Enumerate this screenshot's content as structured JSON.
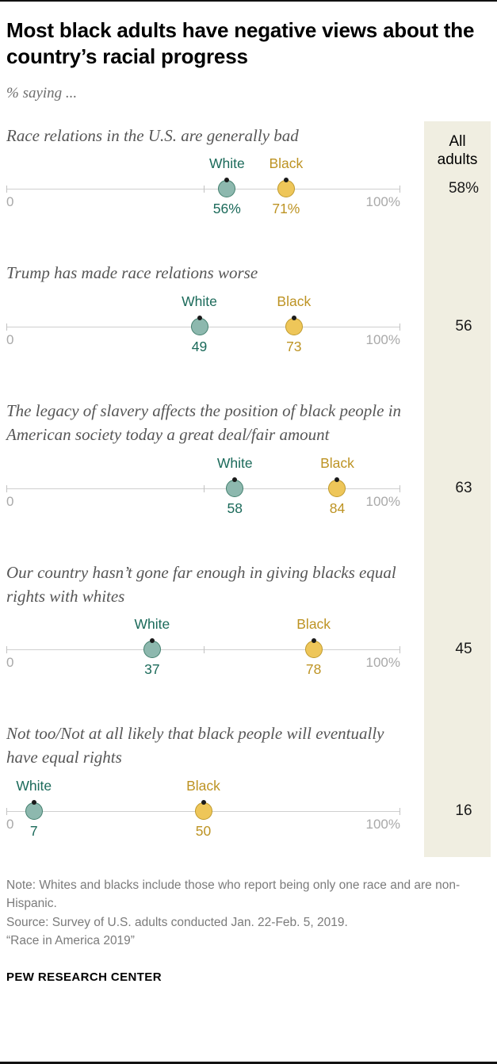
{
  "header": {
    "title": "Most black adults have negative views about the country’s racial progress",
    "subtitle": "% saying ..."
  },
  "chart_data": {
    "type": "dot-plot",
    "axis": {
      "min": 0,
      "max": 100,
      "min_label": "0",
      "max_label": "100%",
      "mid_tick": 50
    },
    "legend": {
      "white": "White",
      "black": "Black"
    },
    "all_adults_header": "All adults",
    "rows": [
      {
        "question": "Race relations in the U.S. are generally bad",
        "white": 56,
        "black": 71,
        "white_label": "56%",
        "black_label": "71%",
        "all_adults": "58%"
      },
      {
        "question": "Trump has made race relations worse",
        "white": 49,
        "black": 73,
        "white_label": "49",
        "black_label": "73",
        "all_adults": "56"
      },
      {
        "question": "The legacy of slavery affects the position of black people in American society today a great deal/fair amount",
        "white": 58,
        "black": 84,
        "white_label": "58",
        "black_label": "84",
        "all_adults": "63"
      },
      {
        "question": "Our country hasn’t gone far enough in giving blacks equal rights with whites",
        "white": 37,
        "black": 78,
        "white_label": "37",
        "black_label": "78",
        "all_adults": "45"
      },
      {
        "question": "Not too/Not at all likely that black people will eventually have equal rights",
        "white": 7,
        "black": 50,
        "white_label": "7",
        "black_label": "50",
        "all_adults": "16"
      }
    ],
    "colors": {
      "white_dot_fill": "#8db8ae",
      "white_dot_border": "#44806f",
      "white_text": "#1b6a5a",
      "black_dot_fill": "#eec659",
      "black_dot_border": "#bf9a2e",
      "black_text": "#bd9323",
      "all_adults_strip_bg": "#f0eee1",
      "axis_line": "#cfcfcf"
    }
  },
  "footer": {
    "note": "Note: Whites and blacks include those who report being only one race and are non-Hispanic.",
    "source": "Source: Survey of U.S. adults conducted Jan. 22-Feb. 5, 2019.",
    "source2": "“Race in America 2019”",
    "brand": "PEW RESEARCH CENTER"
  }
}
